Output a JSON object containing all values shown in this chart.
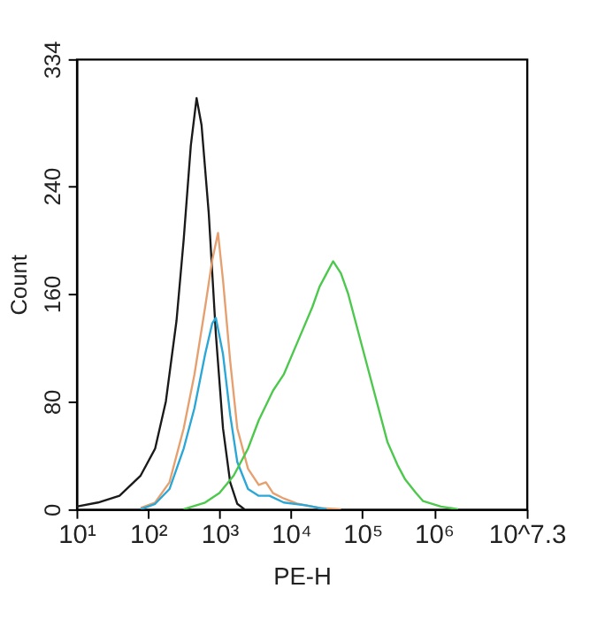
{
  "chart_data": {
    "type": "line",
    "xlabel": "PE-H",
    "ylabel": "Count",
    "log": "x",
    "grid": false,
    "legend": false,
    "marker": "none",
    "line_style": "solid",
    "xlim": [
      10,
      19952623
    ],
    "ylim": [
      0,
      334
    ],
    "xticks": [
      {
        "value": 10,
        "label": "10¹"
      },
      {
        "value": 100,
        "label": "10²"
      },
      {
        "value": 1000,
        "label": "10³"
      },
      {
        "value": 10000,
        "label": "10⁴"
      },
      {
        "value": 100000,
        "label": "10⁵"
      },
      {
        "value": 1000000,
        "label": "10⁶"
      },
      {
        "value": 19952623,
        "label": "10^7.3"
      }
    ],
    "yticks": [
      0,
      80,
      160,
      240,
      334
    ],
    "series": [
      {
        "color": "#1a1a1a",
        "x": [
          10,
          20,
          40,
          79,
          126,
          178,
          251,
          316,
          398,
          479,
          562,
          708,
          891,
          1122,
          1413,
          1778,
          2239
        ],
        "values": [
          2,
          5,
          10,
          25,
          45,
          80,
          140,
          200,
          270,
          305,
          285,
          220,
          130,
          60,
          20,
          4,
          0
        ]
      },
      {
        "color": "#e6a070",
        "x": [
          79,
          126,
          200,
          316,
          447,
          631,
          794,
          955,
          1122,
          1413,
          1778,
          2512,
          3548,
          4467,
          5623,
          7943,
          12589,
          25119,
          50119
        ],
        "values": [
          1,
          5,
          20,
          60,
          100,
          150,
          185,
          205,
          170,
          110,
          60,
          30,
          18,
          20,
          12,
          8,
          4,
          1,
          0
        ]
      },
      {
        "color": "#2aa7d6",
        "x": [
          79,
          126,
          200,
          316,
          447,
          631,
          794,
          891,
          1122,
          1413,
          1778,
          2512,
          3548,
          5012,
          7943,
          15849,
          31623
        ],
        "values": [
          0,
          4,
          15,
          45,
          75,
          115,
          138,
          142,
          115,
          70,
          35,
          15,
          10,
          10,
          5,
          3,
          0
        ]
      },
      {
        "color": "#4cc84c",
        "x": [
          316,
          631,
          1000,
          1585,
          2512,
          3548,
          5623,
          7943,
          12589,
          19953,
          25119,
          31623,
          38905,
          50119,
          63096,
          79433,
          100000,
          125893,
          173780,
          223872,
          309030,
          398107,
          562341,
          707946,
          1258925,
          2187762
        ],
        "values": [
          0,
          5,
          12,
          25,
          45,
          66,
          88,
          100,
          125,
          150,
          165,
          175,
          184,
          175,
          160,
          140,
          120,
          100,
          72,
          50,
          33,
          22,
          12,
          6,
          2,
          0
        ]
      }
    ]
  }
}
